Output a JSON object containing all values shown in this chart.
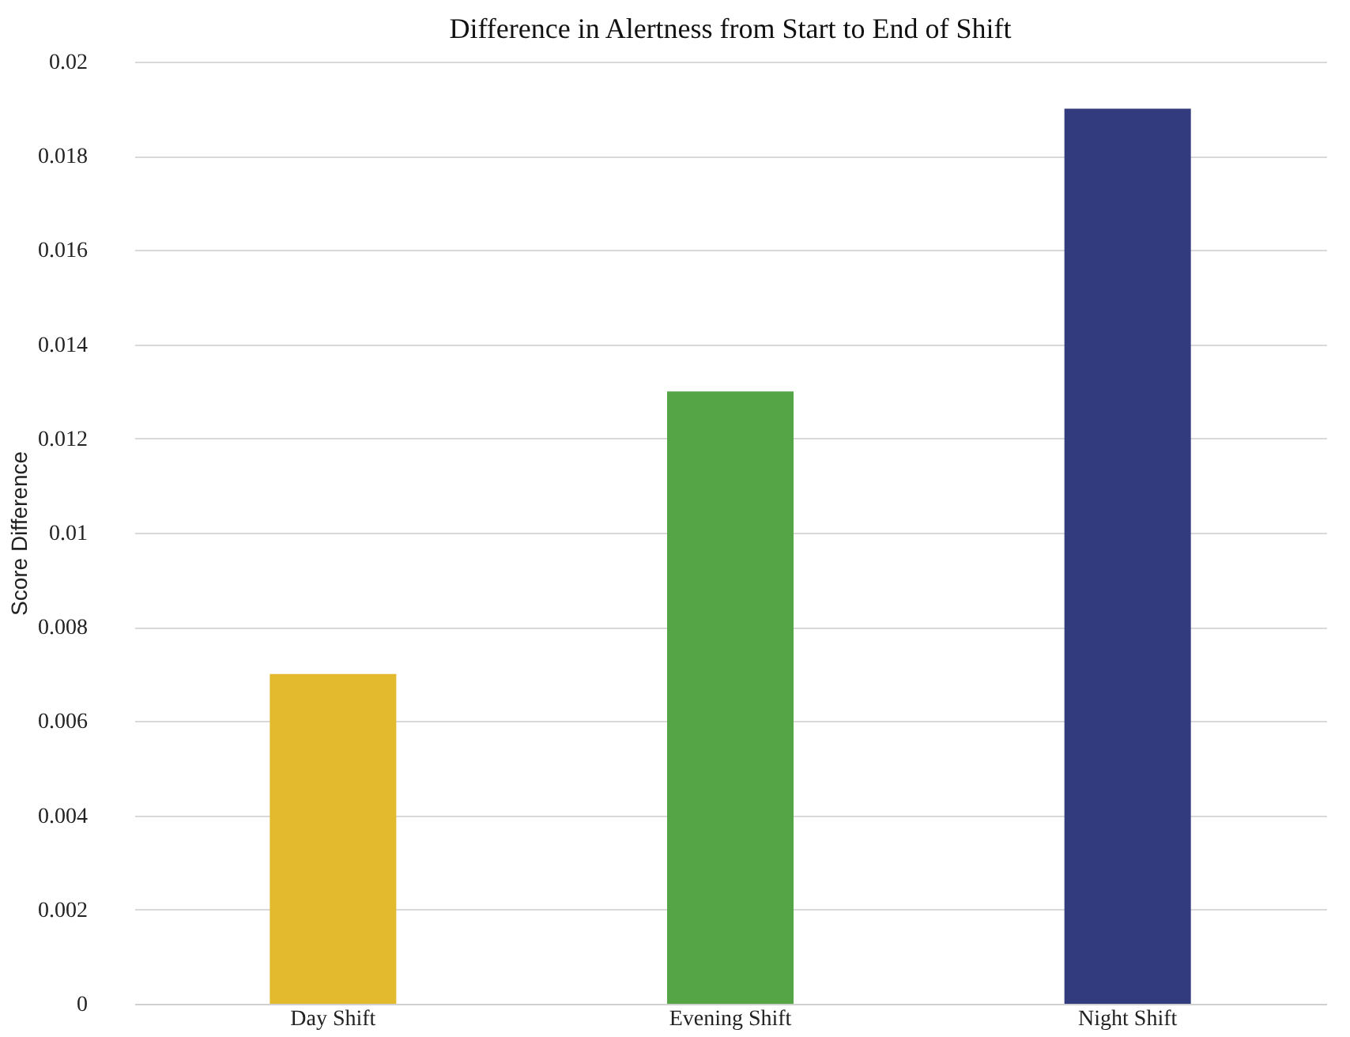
{
  "chart_data": {
    "type": "bar",
    "title": "Difference in Alertness from Start to End of Shift",
    "ylabel": "Score Difference",
    "categories": [
      "Day Shift",
      "Evening Shift",
      "Night Shift"
    ],
    "values": [
      0.007,
      0.013,
      0.019
    ],
    "colors": [
      "#e3b92d",
      "#55a446",
      "#323b7d"
    ],
    "ylim": [
      0,
      0.02
    ],
    "yticks": [
      0,
      0.002,
      0.004,
      0.006,
      0.008,
      0.01,
      0.012,
      0.014,
      0.016,
      0.018,
      0.02
    ],
    "grid": "y"
  }
}
